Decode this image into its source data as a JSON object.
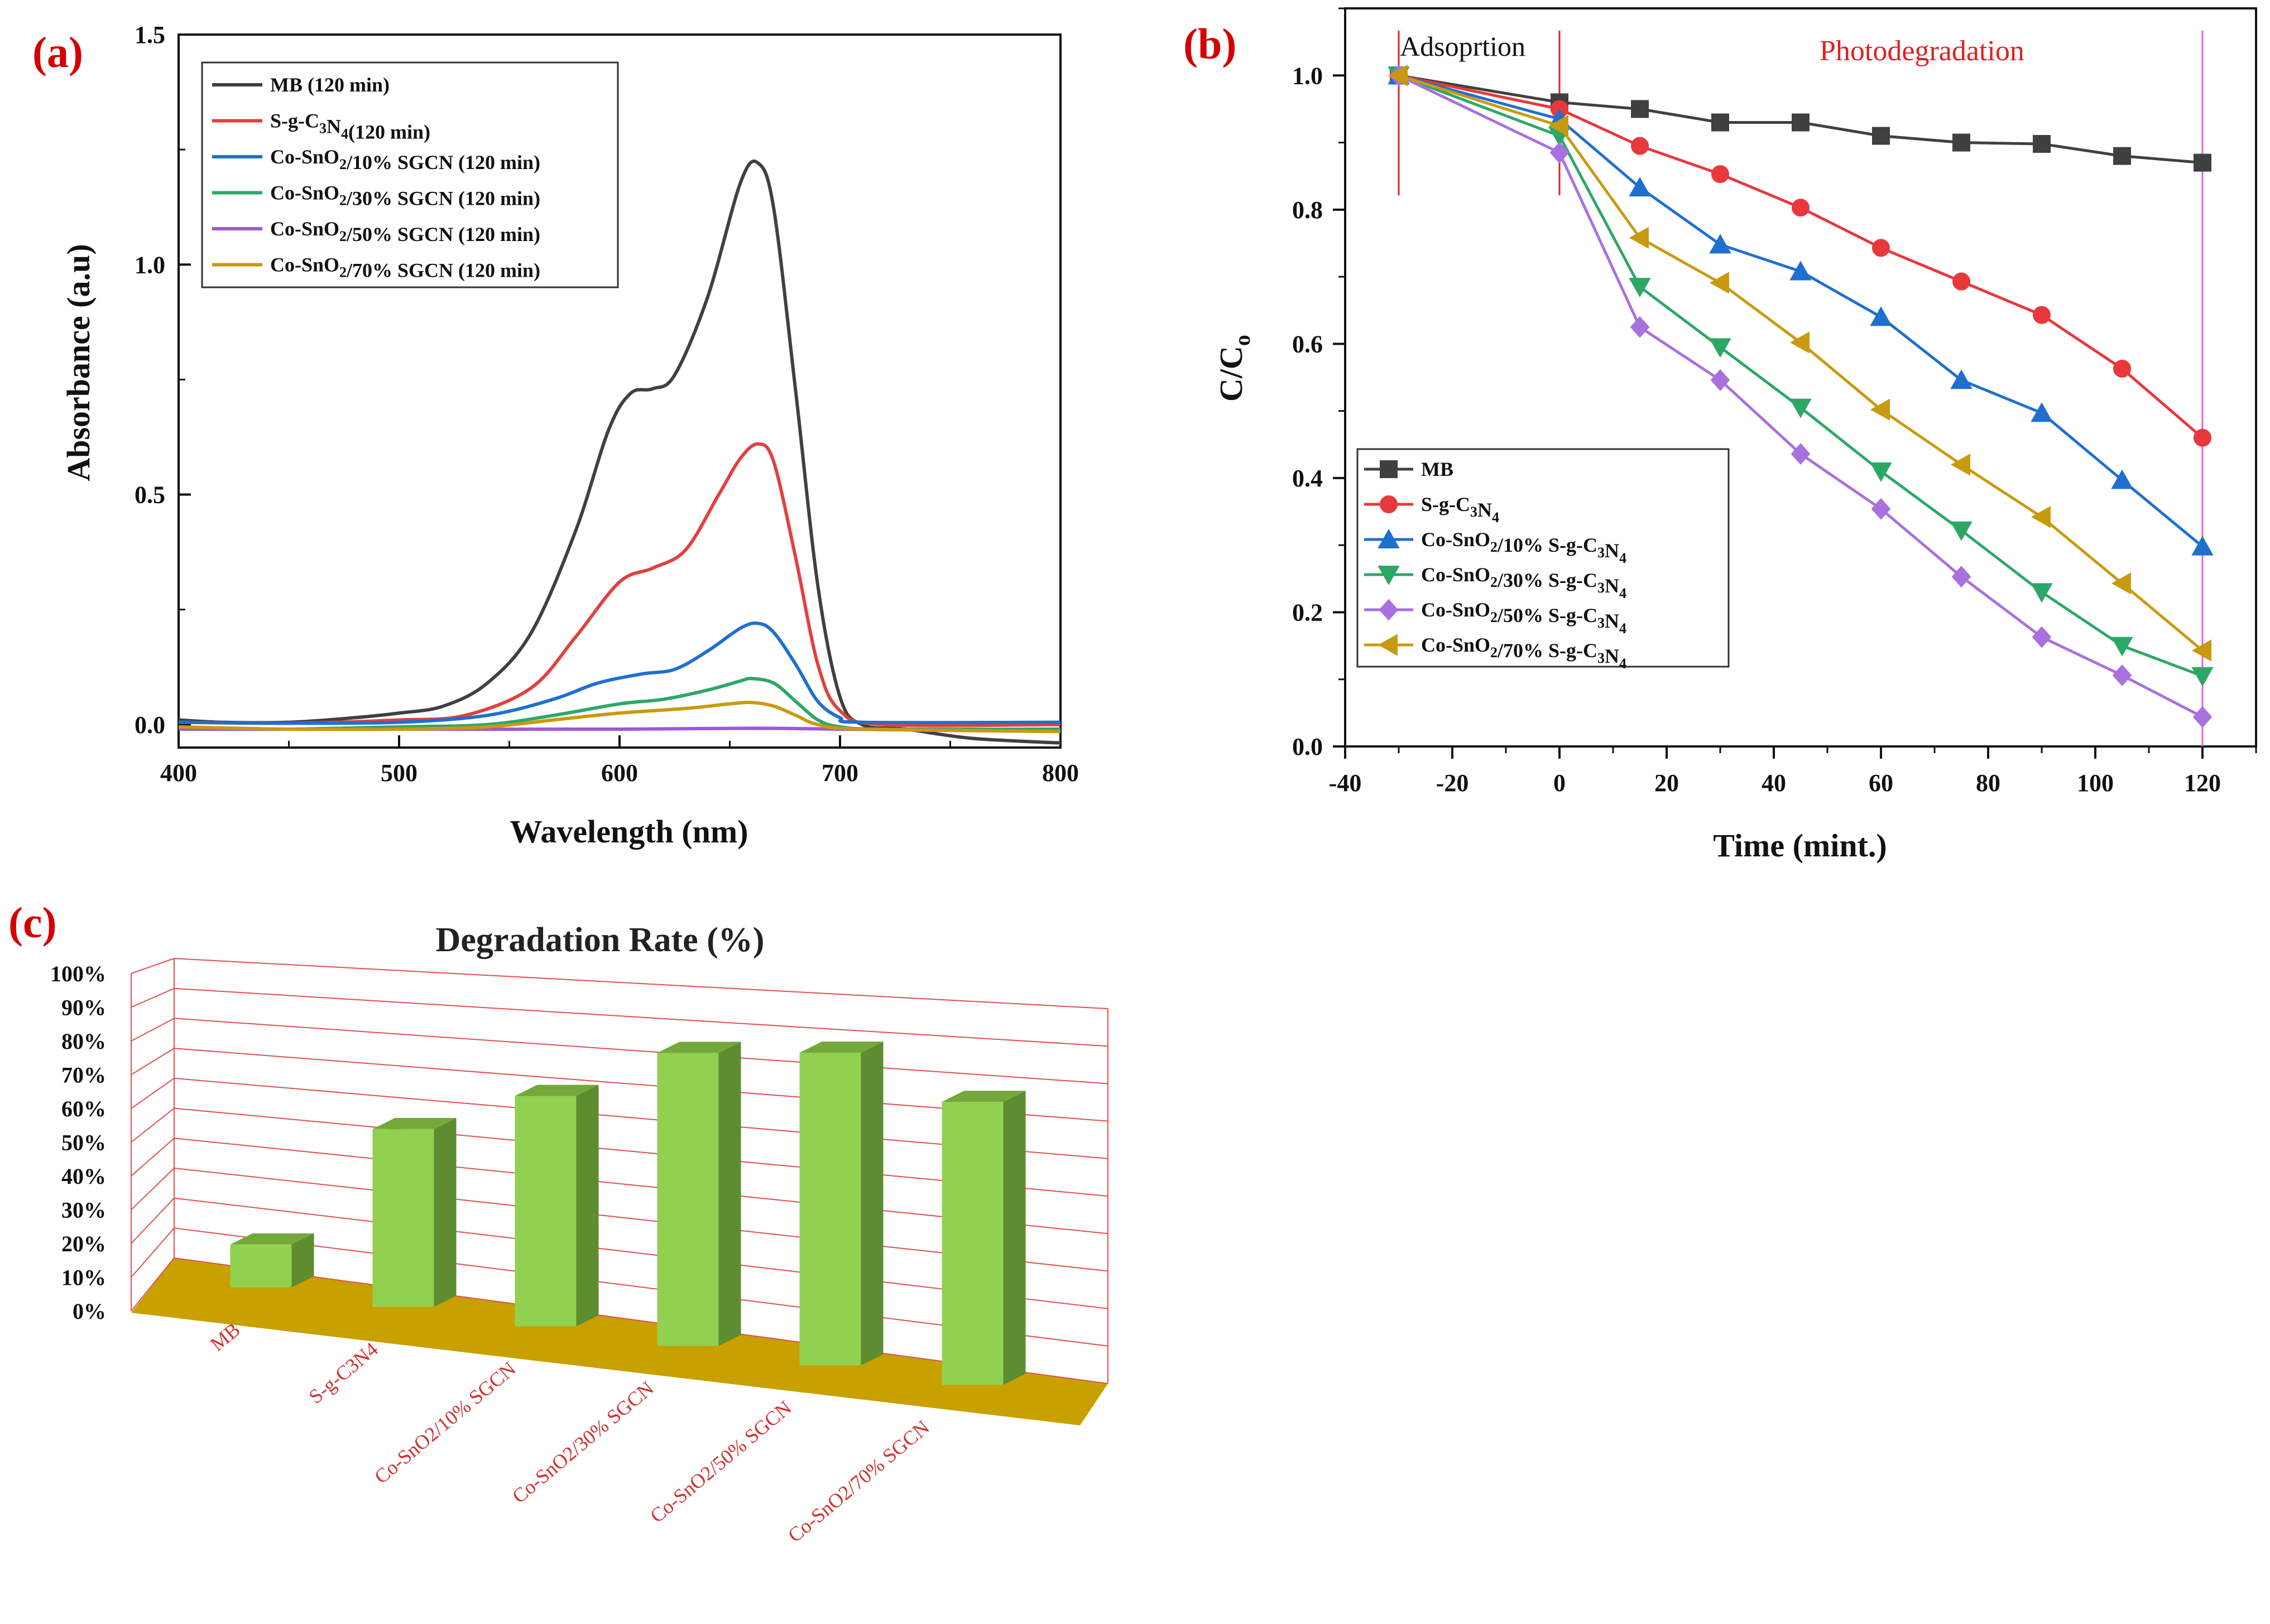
{
  "figure": {
    "panel_a_label": "(a)",
    "panel_b_label": "(b)",
    "panel_c_label": "(c)"
  },
  "chart_data": [
    {
      "id": "a",
      "type": "line",
      "title": "",
      "xlabel": "Wavelength (nm)",
      "ylabel": "Absorbance (a.u)",
      "xlim": [
        400,
        800
      ],
      "ylim": [
        -0.05,
        1.5
      ],
      "xticks": [
        400,
        500,
        600,
        700,
        800
      ],
      "yticks": [
        0.0,
        0.5,
        1.0,
        1.5
      ],
      "ytick_labels": [
        "0.0",
        "0.5",
        "1.0",
        "1.5"
      ],
      "legend_position": "top-left",
      "series": [
        {
          "name_main": "MB",
          "name_sub": "",
          "name_rest": "",
          "name_tail": " (120 min)",
          "color": "#404040",
          "x": [
            400,
            420,
            450,
            480,
            500,
            520,
            540,
            560,
            580,
            595,
            605,
            615,
            625,
            640,
            655,
            663,
            670,
            680,
            690,
            700,
            710,
            730,
            760,
            800
          ],
          "y": [
            0.01,
            0.005,
            0.005,
            0.015,
            0.025,
            0.04,
            0.09,
            0.2,
            0.42,
            0.64,
            0.72,
            0.73,
            0.76,
            0.93,
            1.18,
            1.22,
            1.12,
            0.72,
            0.3,
            0.06,
            0.0,
            -0.01,
            -0.03,
            -0.04
          ]
        },
        {
          "name_main": "S-g-C",
          "name_sub": "3",
          "name_rest": "N",
          "name_sub2": "4",
          "name_tail": "(120 min)",
          "color": "#e24040",
          "x": [
            400,
            450,
            500,
            530,
            560,
            580,
            600,
            615,
            630,
            645,
            655,
            663,
            670,
            680,
            690,
            700,
            720,
            800
          ],
          "y": [
            0.005,
            0.003,
            0.01,
            0.02,
            0.08,
            0.19,
            0.31,
            0.34,
            0.38,
            0.5,
            0.58,
            0.61,
            0.57,
            0.36,
            0.13,
            0.03,
            0.0,
            0.0
          ]
        },
        {
          "name_main": "Co-SnO",
          "name_sub": "2",
          "name_rest": "/10% SGCN  (120 min)",
          "name_sub2": "",
          "name_tail": "",
          "color": "#1f6fd0",
          "x": [
            400,
            450,
            500,
            540,
            570,
            590,
            610,
            625,
            640,
            655,
            663,
            670,
            680,
            690,
            700,
            710,
            800
          ],
          "y": [
            0.005,
            0.003,
            0.005,
            0.02,
            0.055,
            0.09,
            0.11,
            0.12,
            0.16,
            0.21,
            0.22,
            0.2,
            0.13,
            0.05,
            0.015,
            0.005,
            0.005
          ]
        },
        {
          "name_main": "Co-SnO",
          "name_sub": "2",
          "name_rest": "/30% SGCN  (120 min)",
          "name_sub2": "",
          "name_tail": "",
          "color": "#2ca866",
          "x": [
            400,
            450,
            500,
            540,
            570,
            600,
            620,
            640,
            655,
            660,
            670,
            680,
            690,
            700,
            720,
            800
          ],
          "y": [
            -0.01,
            -0.01,
            -0.005,
            0.0,
            0.02,
            0.045,
            0.055,
            0.075,
            0.095,
            0.1,
            0.09,
            0.05,
            0.01,
            -0.005,
            -0.01,
            -0.01
          ]
        },
        {
          "name_main": "Co-SnO",
          "name_sub": "2",
          "name_rest": "/50% SGCN  (120 min)",
          "name_sub2": "",
          "name_tail": "",
          "color": "#9b59d6",
          "x": [
            400,
            500,
            600,
            660,
            700,
            800
          ],
          "y": [
            -0.01,
            -0.01,
            -0.01,
            -0.008,
            -0.01,
            -0.015
          ]
        },
        {
          "name_main": "Co-SnO",
          "name_sub": "2",
          "name_rest": "/70% SGCN  (120 min)",
          "name_sub2": "",
          "name_tail": "",
          "color": "#c99a10",
          "x": [
            400,
            450,
            500,
            540,
            570,
            600,
            630,
            650,
            660,
            670,
            680,
            690,
            710,
            800
          ],
          "y": [
            -0.005,
            -0.01,
            -0.01,
            -0.005,
            0.01,
            0.025,
            0.035,
            0.045,
            0.048,
            0.04,
            0.02,
            0.0,
            -0.01,
            -0.015
          ]
        }
      ]
    },
    {
      "id": "b",
      "type": "line",
      "title": "",
      "xlabel": "Time (mint.)",
      "ylabel_main": "C/C",
      "ylabel_sub": "o",
      "xlim": [
        -40,
        130
      ],
      "ylim": [
        0.0,
        1.1
      ],
      "xticks": [
        -40,
        -20,
        0,
        20,
        40,
        60,
        80,
        100,
        120
      ],
      "yticks": [
        0.0,
        0.2,
        0.4,
        0.6,
        0.8,
        1.0
      ],
      "ytick_labels": [
        "0.0",
        "0.2",
        "0.4",
        "0.6",
        "0.8",
        "1.0"
      ],
      "annotation_adsorption": "Adsoprtion",
      "annotation_photodegradation": "Photodegradation",
      "marker_lines_x": [
        -30,
        0,
        120
      ],
      "legend_position": "bottom-left",
      "x": [
        -30,
        0,
        15,
        30,
        45,
        60,
        75,
        90,
        105,
        120
      ],
      "series": [
        {
          "name_main": "MB",
          "marker": "square",
          "color": "#404040",
          "name_parts": [
            "MB"
          ],
          "values": [
            1.0,
            0.96,
            0.95,
            0.93,
            0.93,
            0.91,
            0.9,
            0.898,
            0.88,
            0.87
          ]
        },
        {
          "name_main": "S-g-C3N4",
          "marker": "circle",
          "color": "#e8383b",
          "name_parts": [
            "S-g-C",
            "3",
            "N",
            "4"
          ],
          "values": [
            1.0,
            0.95,
            0.895,
            0.853,
            0.803,
            0.743,
            0.693,
            0.643,
            0.563,
            0.46
          ]
        },
        {
          "name_main": "Co-SnO2/10% S-g-C3N4",
          "marker": "triangle-up",
          "color": "#1f6fd0",
          "name_parts": [
            "Co-SnO",
            "2",
            "/10% S-g-C",
            "3",
            "N",
            "4"
          ],
          "values": [
            1.0,
            0.935,
            0.833,
            0.748,
            0.708,
            0.64,
            0.546,
            0.497,
            0.397,
            0.298
          ]
        },
        {
          "name_main": "Co-SnO2/30% S-g-C3N4",
          "marker": "triangle-down",
          "color": "#2ca866",
          "name_parts": [
            "Co-SnO",
            "2",
            "/30% S-g-C",
            "3",
            "N",
            "4"
          ],
          "values": [
            1.0,
            0.91,
            0.685,
            0.595,
            0.505,
            0.41,
            0.322,
            0.23,
            0.15,
            0.105
          ]
        },
        {
          "name_main": "Co-SnO2/50% S-g-C3N4",
          "marker": "diamond",
          "color": "#a970e0",
          "name_parts": [
            "Co-SnO",
            "2",
            "/50% S-g-C",
            "3",
            "N",
            "4"
          ],
          "values": [
            1.0,
            0.885,
            0.625,
            0.546,
            0.436,
            0.354,
            0.253,
            0.163,
            0.106,
            0.044
          ]
        },
        {
          "name_main": "Co-SnO2/70% S-g-C3N4",
          "marker": "triangle-left",
          "color": "#c99a10",
          "name_parts": [
            "Co-SnO",
            "2",
            "/70% S-g-C",
            "3",
            "N",
            "4"
          ],
          "values": [
            1.0,
            0.925,
            0.758,
            0.691,
            0.602,
            0.502,
            0.42,
            0.342,
            0.243,
            0.143
          ]
        }
      ]
    },
    {
      "id": "c",
      "type": "bar",
      "title": "Degradation Rate (%)",
      "categories": [
        "MB",
        "S-g-C3N4",
        "Co-SnO2/10% SGCN",
        "Co-SnO2/30% SGCN",
        "Co-SnO2/50% SGCN",
        "Co-SnO2/70% SGCN"
      ],
      "values": [
        13,
        54,
        70,
        89,
        95,
        86
      ],
      "ylim": [
        0,
        100
      ],
      "yticks": [
        0,
        10,
        20,
        30,
        40,
        50,
        60,
        70,
        80,
        90,
        100
      ],
      "ytick_labels": [
        "0%",
        "10%",
        "20%",
        "30%",
        "40%",
        "50%",
        "60%",
        "70%",
        "80%",
        "90%",
        "100%"
      ],
      "bar_color": "#92d050",
      "floor_color": "#c8a000",
      "grid_color": "#e05050"
    }
  ]
}
